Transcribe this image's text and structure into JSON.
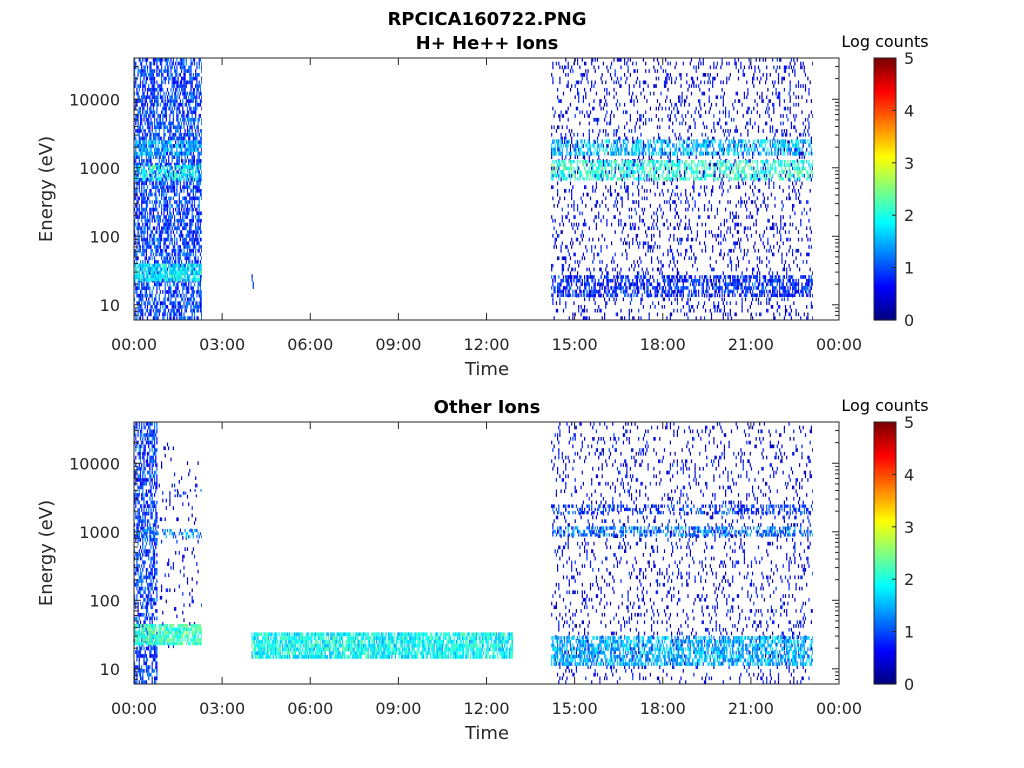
{
  "figure": {
    "title_line1": "RPCICA160722.PNG"
  },
  "chart_data": [
    {
      "type": "heatmap",
      "title": "H+ He++ Ions",
      "xlabel": "Time",
      "ylabel": "Energy (eV)",
      "x_tick_labels": [
        "00:00",
        "03:00",
        "06:00",
        "09:00",
        "12:00",
        "15:00",
        "18:00",
        "21:00",
        "00:00"
      ],
      "x_ticks_hours": [
        0,
        3,
        6,
        9,
        12,
        15,
        18,
        21,
        24
      ],
      "xlim_hours": [
        0,
        24
      ],
      "y_scale": "log",
      "y_tick_labels": [
        "10",
        "100",
        "1000",
        "10000"
      ],
      "y_ticks": [
        10,
        100,
        1000,
        10000
      ],
      "ylim": [
        6,
        40000
      ],
      "colorbar": {
        "label": "Log counts",
        "range": [
          0,
          5
        ],
        "tick_labels": [
          "0",
          "1",
          "2",
          "3",
          "4",
          "5"
        ],
        "colormap": "jet"
      },
      "features": [
        {
          "name": "broadband-noise",
          "t": [
            0.0,
            2.3
          ],
          "e": [
            6,
            40000
          ],
          "level": 0.9,
          "density": 0.6
        },
        {
          "name": "band-2000",
          "t": [
            0.0,
            2.3
          ],
          "e": [
            1500,
            2500
          ],
          "level": 1.6,
          "density": 0.5
        },
        {
          "name": "band-800",
          "t": [
            0.0,
            2.3
          ],
          "e": [
            650,
            1100
          ],
          "level": 2.0,
          "density": 0.55
        },
        {
          "name": "low-band",
          "t": [
            0.0,
            2.3
          ],
          "e": [
            22,
            40
          ],
          "level": 1.8,
          "density": 0.8
        },
        {
          "name": "blip",
          "t": [
            4.0,
            4.08
          ],
          "e": [
            17,
            28
          ],
          "level": 0.7,
          "density": 0.7
        },
        {
          "name": "late-noise",
          "t": [
            14.2,
            23.1
          ],
          "e": [
            6,
            40000
          ],
          "level": 0.5,
          "density": 0.15
        },
        {
          "name": "late-band-2000",
          "t": [
            14.2,
            23.1
          ],
          "e": [
            1500,
            2600
          ],
          "level": 1.6,
          "density": 0.45
        },
        {
          "name": "late-band-1000",
          "t": [
            14.2,
            23.1
          ],
          "e": [
            650,
            1300
          ],
          "level": 2.1,
          "density": 0.5
        },
        {
          "name": "late-low-band",
          "t": [
            14.2,
            23.1
          ],
          "e": [
            13,
            27
          ],
          "level": 0.8,
          "density": 0.5
        }
      ]
    },
    {
      "type": "heatmap",
      "title": "Other Ions",
      "xlabel": "Time",
      "ylabel": "Energy (eV)",
      "x_tick_labels": [
        "00:00",
        "03:00",
        "06:00",
        "09:00",
        "12:00",
        "15:00",
        "18:00",
        "21:00",
        "00:00"
      ],
      "x_ticks_hours": [
        0,
        3,
        6,
        9,
        12,
        15,
        18,
        21,
        24
      ],
      "xlim_hours": [
        0,
        24
      ],
      "y_scale": "log",
      "y_tick_labels": [
        "10",
        "100",
        "1000",
        "10000"
      ],
      "y_ticks": [
        10,
        100,
        1000,
        10000
      ],
      "ylim": [
        6,
        40000
      ],
      "colorbar": {
        "label": "Log counts",
        "range": [
          0,
          5
        ],
        "tick_labels": [
          "0",
          "1",
          "2",
          "3",
          "4",
          "5"
        ],
        "colormap": "jet"
      },
      "features": [
        {
          "name": "early-noise",
          "t": [
            0.0,
            0.8
          ],
          "e": [
            6,
            40000
          ],
          "level": 0.9,
          "density": 0.55
        },
        {
          "name": "sparse-noise",
          "t": [
            0.8,
            2.3
          ],
          "e": [
            20,
            20000
          ],
          "level": 0.5,
          "density": 0.05
        },
        {
          "name": "band-900",
          "t": [
            0.0,
            2.3
          ],
          "e": [
            800,
            1100
          ],
          "level": 1.3,
          "density": 0.35
        },
        {
          "name": "band-3500",
          "t": [
            1.3,
            2.3
          ],
          "e": [
            3200,
            4200
          ],
          "level": 0.8,
          "density": 0.2
        },
        {
          "name": "low-band",
          "t": [
            0.0,
            2.3
          ],
          "e": [
            22,
            45
          ],
          "level": 2.2,
          "density": 0.85
        },
        {
          "name": "mid-band",
          "t": [
            4.0,
            12.9
          ],
          "e": [
            14,
            34
          ],
          "level": 1.9,
          "density": 0.8
        },
        {
          "name": "late-noise",
          "t": [
            14.2,
            23.1
          ],
          "e": [
            6,
            40000
          ],
          "level": 0.5,
          "density": 0.12
        },
        {
          "name": "late-band-2000",
          "t": [
            14.2,
            23.1
          ],
          "e": [
            1800,
            2500
          ],
          "level": 0.9,
          "density": 0.35
        },
        {
          "name": "late-band-1000",
          "t": [
            14.2,
            23.1
          ],
          "e": [
            850,
            1200
          ],
          "level": 1.2,
          "density": 0.45
        },
        {
          "name": "late-low-band",
          "t": [
            14.2,
            23.1
          ],
          "e": [
            11,
            30
          ],
          "level": 1.5,
          "density": 0.6
        }
      ]
    }
  ]
}
